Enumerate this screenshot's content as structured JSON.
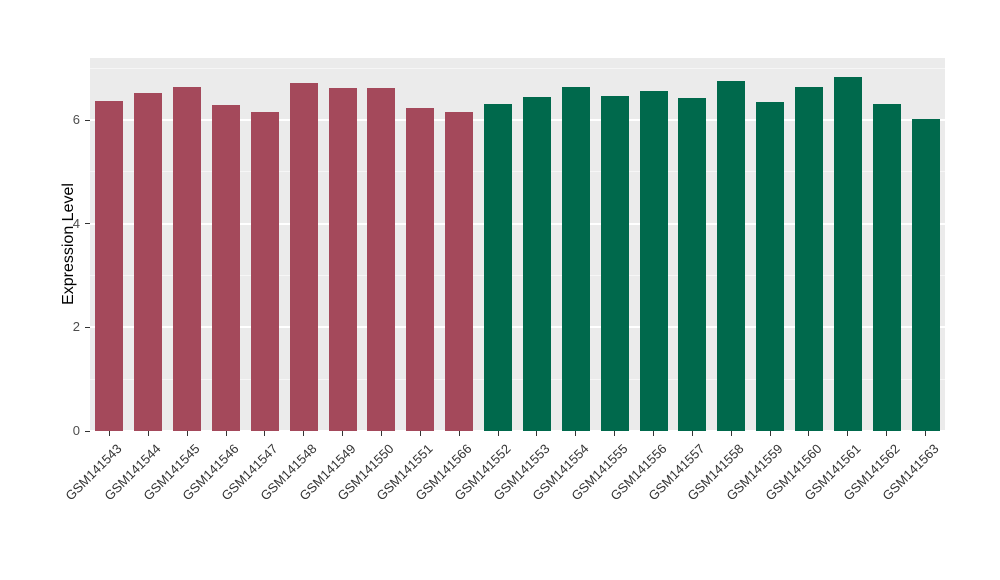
{
  "chart_data": {
    "type": "bar",
    "title": "",
    "xlabel": "",
    "ylabel": "Expression Level",
    "ylim": [
      0,
      7.2
    ],
    "yticks": [
      0,
      2,
      4,
      6
    ],
    "yticks_minor": [
      1,
      3,
      5,
      7
    ],
    "grid": "on",
    "legend": "none",
    "panel_background": "#EBEBEB",
    "grid_color": "#FFFFFF",
    "categories": [
      "GSM141543",
      "GSM141544",
      "GSM141545",
      "GSM141546",
      "GSM141547",
      "GSM141548",
      "GSM141549",
      "GSM141550",
      "GSM141551",
      "GSM141566",
      "GSM141552",
      "GSM141553",
      "GSM141554",
      "GSM141555",
      "GSM141556",
      "GSM141557",
      "GSM141558",
      "GSM141559",
      "GSM141560",
      "GSM141561",
      "GSM141562",
      "GSM141563"
    ],
    "values": [
      6.37,
      6.52,
      6.65,
      6.3,
      6.15,
      6.72,
      6.62,
      6.63,
      6.24,
      6.16,
      6.32,
      6.45,
      6.65,
      6.47,
      6.57,
      6.42,
      6.75,
      6.36,
      6.65,
      6.83,
      6.32,
      6.02
    ],
    "groups": [
      "A",
      "A",
      "A",
      "A",
      "A",
      "A",
      "A",
      "A",
      "A",
      "A",
      "B",
      "B",
      "B",
      "B",
      "B",
      "B",
      "B",
      "B",
      "B",
      "B",
      "B",
      "B"
    ],
    "group_colors": {
      "A": "#A4495B",
      "B": "#00694C"
    }
  }
}
